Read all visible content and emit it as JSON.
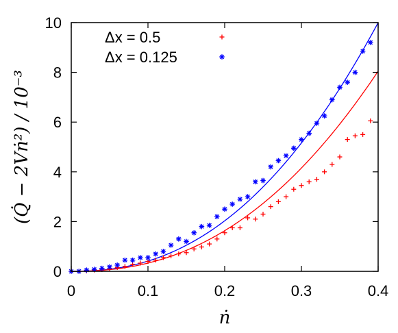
{
  "chart_data": {
    "type": "scatter",
    "xlabel": "ṅ",
    "ylabel": "(Q̇ − 2Vṅ²) / 10⁻³",
    "xlim": [
      0,
      0.4
    ],
    "ylim": [
      0,
      10
    ],
    "xticks": [
      "0",
      "0.1",
      "0.2",
      "0.3",
      "0.4"
    ],
    "yticks": [
      "0",
      "2",
      "4",
      "6",
      "8",
      "10"
    ],
    "legend_position": "top-left",
    "series": [
      {
        "name": "Δx = 0.5",
        "marker": "plus",
        "color": "#ff0000",
        "x": [
          0.0,
          0.01,
          0.02,
          0.03,
          0.04,
          0.05,
          0.06,
          0.07,
          0.08,
          0.09,
          0.1,
          0.11,
          0.12,
          0.13,
          0.14,
          0.15,
          0.16,
          0.17,
          0.18,
          0.19,
          0.2,
          0.21,
          0.22,
          0.23,
          0.24,
          0.25,
          0.26,
          0.27,
          0.28,
          0.29,
          0.3,
          0.31,
          0.32,
          0.33,
          0.34,
          0.35,
          0.36,
          0.37,
          0.38,
          0.39
        ],
        "y": [
          0.0,
          0.0,
          0.02,
          0.05,
          0.07,
          0.12,
          0.15,
          0.2,
          0.28,
          0.33,
          0.4,
          0.45,
          0.55,
          0.62,
          0.7,
          0.75,
          0.9,
          0.98,
          1.1,
          1.3,
          1.55,
          1.75,
          1.75,
          2.15,
          2.1,
          2.3,
          2.6,
          2.8,
          3.0,
          3.3,
          3.45,
          3.6,
          3.7,
          4.0,
          4.3,
          4.6,
          5.3,
          5.45,
          5.5,
          6.05
        ]
      },
      {
        "name": "Δx = 0.125",
        "marker": "asterisk",
        "color": "#0000ff",
        "x": [
          0.0,
          0.01,
          0.02,
          0.03,
          0.04,
          0.05,
          0.06,
          0.07,
          0.08,
          0.09,
          0.1,
          0.11,
          0.12,
          0.13,
          0.14,
          0.15,
          0.16,
          0.17,
          0.18,
          0.19,
          0.2,
          0.21,
          0.22,
          0.23,
          0.24,
          0.25,
          0.26,
          0.27,
          0.28,
          0.29,
          0.3,
          0.31,
          0.32,
          0.33,
          0.34,
          0.35,
          0.36,
          0.37,
          0.38,
          0.39
        ],
        "y": [
          0.0,
          0.0,
          0.05,
          0.08,
          0.12,
          0.18,
          0.25,
          0.45,
          0.45,
          0.55,
          0.55,
          0.7,
          0.8,
          1.05,
          1.3,
          1.2,
          1.55,
          1.8,
          1.85,
          2.2,
          2.5,
          2.7,
          2.9,
          3.0,
          3.6,
          3.65,
          4.2,
          4.45,
          4.65,
          4.95,
          5.3,
          5.55,
          5.95,
          6.25,
          6.9,
          7.4,
          7.6,
          8.0,
          8.85,
          9.2
        ]
      }
    ],
    "curves": [
      {
        "color": "#0000ff",
        "x_end": 0.4,
        "y_end": 10.0,
        "exponent": 2.3
      },
      {
        "color": "#ff0000",
        "x_end": 0.4,
        "y_end": 8.05,
        "exponent": 2.3
      }
    ]
  }
}
